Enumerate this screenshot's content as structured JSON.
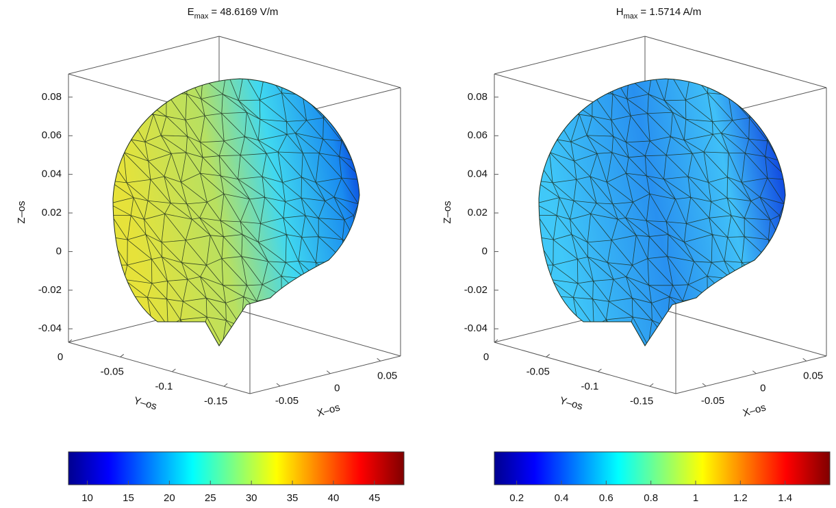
{
  "chart_data": [
    {
      "type": "surface",
      "title": {
        "symbol": "E",
        "subscript": "max",
        "text": "= 48.6169 V/m"
      },
      "xlabel": "X–os",
      "ylabel": "Y–os",
      "zlabel": "Z–os",
      "xlim": [
        -0.08,
        0.07
      ],
      "xticks": [
        -0.05,
        0,
        0.05
      ],
      "ylim": [
        -0.175,
        0
      ],
      "yticks": [
        0,
        -0.05,
        -0.1,
        -0.15
      ],
      "zlim": [
        -0.047,
        0.092
      ],
      "zticks": [
        0.08,
        0.06,
        0.04,
        0.02,
        0,
        -0.02,
        -0.04
      ],
      "colormap": "jet",
      "clim": [
        7.7,
        48.6
      ],
      "cticks": [
        10,
        15,
        20,
        25,
        30,
        35,
        40,
        45
      ]
    },
    {
      "type": "surface",
      "title": {
        "symbol": "H",
        "subscript": "max",
        "text": "= 1.5714 A/m"
      },
      "xlabel": "X–os",
      "ylabel": "Y–os",
      "zlabel": "Z–os",
      "xlim": [
        -0.08,
        0.07
      ],
      "xticks": [
        -0.05,
        0,
        0.05
      ],
      "ylim": [
        -0.175,
        0
      ],
      "yticks": [
        0,
        -0.05,
        -0.1,
        -0.15
      ],
      "zlim": [
        -0.047,
        0.092
      ],
      "zticks": [
        0.08,
        0.06,
        0.04,
        0.02,
        0,
        -0.02,
        -0.04
      ],
      "colormap": "jet",
      "clim": [
        0.1,
        1.6
      ],
      "cticks": [
        0.2,
        0.4,
        0.6,
        0.8,
        1,
        1.2,
        1.4
      ]
    }
  ]
}
